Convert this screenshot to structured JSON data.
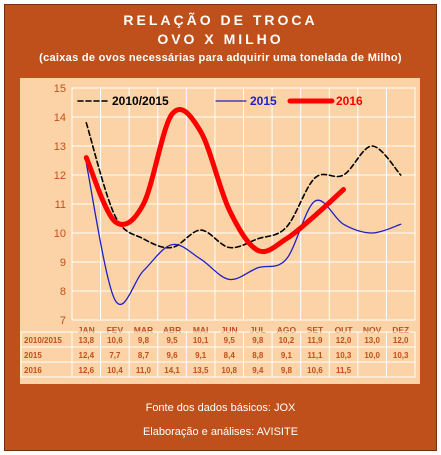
{
  "header": {
    "title": "RELAÇÃO DE TROCA",
    "subtitle": "OVO X MILHO",
    "description": "(caixas de ovos necessárias para adquirir uma tonelada de Milho)"
  },
  "footer": {
    "source": "Fonte dos dados básicos: JOX",
    "credit": "Elaboração e análises: AVISITE"
  },
  "colors": {
    "frame": "#c0501b",
    "panel": "#fbd3a6",
    "series_2010_2015": "#000000",
    "series_2015": "#1f1fc8",
    "series_2016": "#ff0000",
    "grid": "#ffffff",
    "axis_text": "#c0501b"
  },
  "chart_data": {
    "type": "line",
    "categories": [
      "JAN",
      "FEV",
      "MAR",
      "ABR",
      "MAI",
      "JUN",
      "JUL",
      "AGO",
      "SET",
      "OUT",
      "NOV",
      "DEZ"
    ],
    "ylim": [
      7,
      15
    ],
    "yticks": [
      7,
      8,
      9,
      10,
      11,
      12,
      13,
      14,
      15
    ],
    "grid": true,
    "legend": "top",
    "series": [
      {
        "name": "2010/2015",
        "label": "2010/2015",
        "style": "dashed",
        "values": [
          13.8,
          10.6,
          9.8,
          9.5,
          10.1,
          9.5,
          9.8,
          10.2,
          11.9,
          12.0,
          13.0,
          12.0
        ],
        "table": [
          "13,8",
          "10,6",
          "9,8",
          "9,5",
          "10,1",
          "9,5",
          "9,8",
          "10,2",
          "11,9",
          "12,0",
          "13,0",
          "12,0"
        ]
      },
      {
        "name": "2015",
        "label": "2015",
        "style": "solid",
        "values": [
          12.4,
          7.7,
          8.7,
          9.6,
          9.1,
          8.4,
          8.8,
          9.1,
          11.1,
          10.3,
          10.0,
          10.3
        ],
        "table": [
          "12,4",
          "7,7",
          "8,7",
          "9,6",
          "9,1",
          "8,4",
          "8,8",
          "9,1",
          "11,1",
          "10,3",
          "10,0",
          "10,3"
        ]
      },
      {
        "name": "2016",
        "label": "2016",
        "style": "thick",
        "values": [
          12.6,
          10.4,
          11.0,
          14.1,
          13.5,
          10.8,
          9.4,
          9.8,
          10.6,
          11.5,
          null,
          null
        ],
        "table": [
          "12,6",
          "10,4",
          "11,0",
          "14,1",
          "13,5",
          "10,8",
          "9,4",
          "9,8",
          "10,6",
          "11,5",
          "",
          ""
        ]
      }
    ]
  }
}
